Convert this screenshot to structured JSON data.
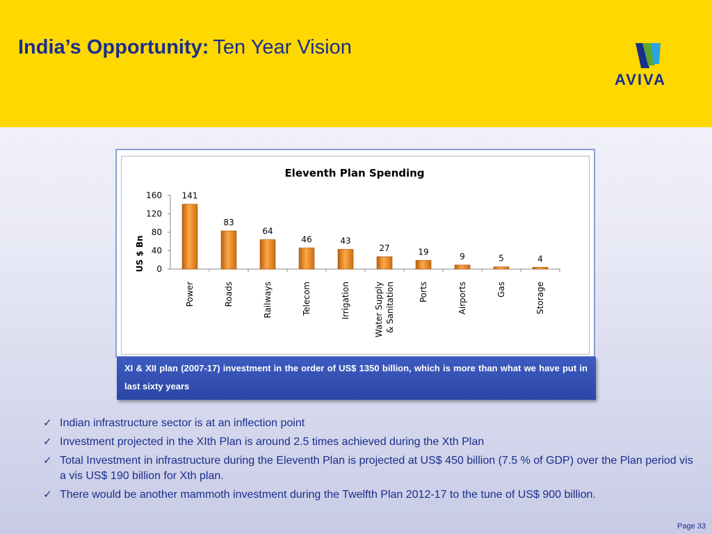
{
  "header": {
    "title_bold": "India’s Opportunity:",
    "title_rest": "Ten Year Vision",
    "logo_text": "AVIVA",
    "logo_icon": "aviva-logo-icon",
    "background_color": "#ffd800",
    "title_color": "#1a2e8c"
  },
  "chart_data": {
    "type": "bar",
    "title": "Eleventh Plan Spending",
    "ylabel": "US $ Bn",
    "xlabel": "",
    "categories": [
      "Power",
      "Roads",
      "Railways",
      "Telecom",
      "Irrigation",
      "Water Supply & Sanitation",
      "Ports",
      "Airports",
      "Gas",
      "Storage"
    ],
    "category_lines": [
      [
        "Power"
      ],
      [
        "Roads"
      ],
      [
        "Railways"
      ],
      [
        "Telecom"
      ],
      [
        "Irrigation"
      ],
      [
        "Water Supply",
        "& Sanitation"
      ],
      [
        "Ports"
      ],
      [
        "Airports"
      ],
      [
        "Gas"
      ],
      [
        "Storage"
      ]
    ],
    "values": [
      141,
      83,
      64,
      46,
      43,
      27,
      19,
      9,
      5,
      4
    ],
    "yticks": [
      "0",
      "40",
      "80",
      "120",
      "160"
    ],
    "ylim": [
      0,
      160
    ],
    "grid": false,
    "legend": "none",
    "bar_color": "#e8861a"
  },
  "callout": {
    "text": "XI & XII plan (2007-17) investment in the order of US$ 1350 billion, which is more than what we have put in last sixty years"
  },
  "bullets": [
    "Indian infrastructure sector is at an inflection point",
    "Investment projected in the XIth Plan is around 2.5 times achieved during the Xth Plan",
    "Total Investment in infrastructure during the Eleventh Plan is projected at US$ 450 billion (7.5 % of GDP) over the Plan period  vis a vis US$ 190 billion for Xth plan.",
    "There would be another mammoth investment during the Twelfth Plan  2012-17 to the tune of US$ 900 billion."
  ],
  "bullet_icon": "checkmark-icon",
  "footer": {
    "page_label": "Page 33"
  }
}
